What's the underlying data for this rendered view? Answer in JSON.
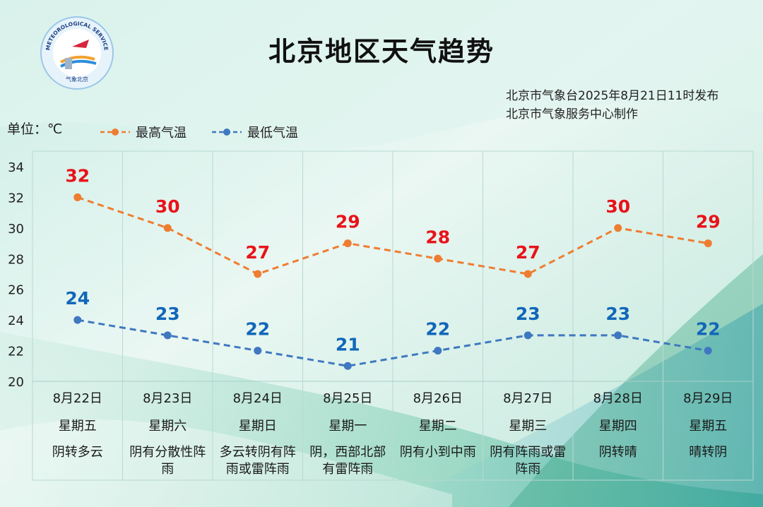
{
  "header": {
    "title": "北京地区天气趋势",
    "issuer_line1": "北京市气象台2025年8月21日11时发布",
    "issuer_line2": "北京市气象服务中心制作",
    "logo_text": "BEIJING METEOROLOGICAL SERVICE",
    "logo_cn": "气象北京"
  },
  "unit_label": "单位：℃",
  "colors": {
    "high": "#ee7d31",
    "low": "#3f78c0",
    "high_label": "#e8131a",
    "low_label": "#1167b8"
  },
  "chart_data": {
    "type": "line",
    "categories": [
      "8月22日",
      "8月23日",
      "8月24日",
      "8月25日",
      "8月26日",
      "8月27日",
      "8月28日",
      "8月29日"
    ],
    "weekdays": [
      "星期五",
      "星期六",
      "星期日",
      "星期一",
      "星期二",
      "星期三",
      "星期四",
      "星期五"
    ],
    "weather": [
      [
        "阴转多云"
      ],
      [
        "阴有分散性阵",
        "雨"
      ],
      [
        "多云转阴有阵",
        "雨或雷阵雨"
      ],
      [
        "阴，西部北部",
        "有雷阵雨"
      ],
      [
        "阴有小到中雨"
      ],
      [
        "阴有阵雨或雷",
        "阵雨"
      ],
      [
        "阴转晴"
      ],
      [
        "晴转阴"
      ]
    ],
    "series": [
      {
        "name": "最高气温",
        "values": [
          32,
          30,
          27,
          29,
          28,
          27,
          30,
          29
        ]
      },
      {
        "name": "最低气温",
        "values": [
          24,
          23,
          22,
          21,
          22,
          23,
          23,
          22
        ]
      }
    ],
    "ylim": [
      20,
      34
    ],
    "yticks": [
      20,
      22,
      24,
      26,
      28,
      30,
      32,
      34
    ],
    "grid": true,
    "legend_position": "top-left"
  }
}
